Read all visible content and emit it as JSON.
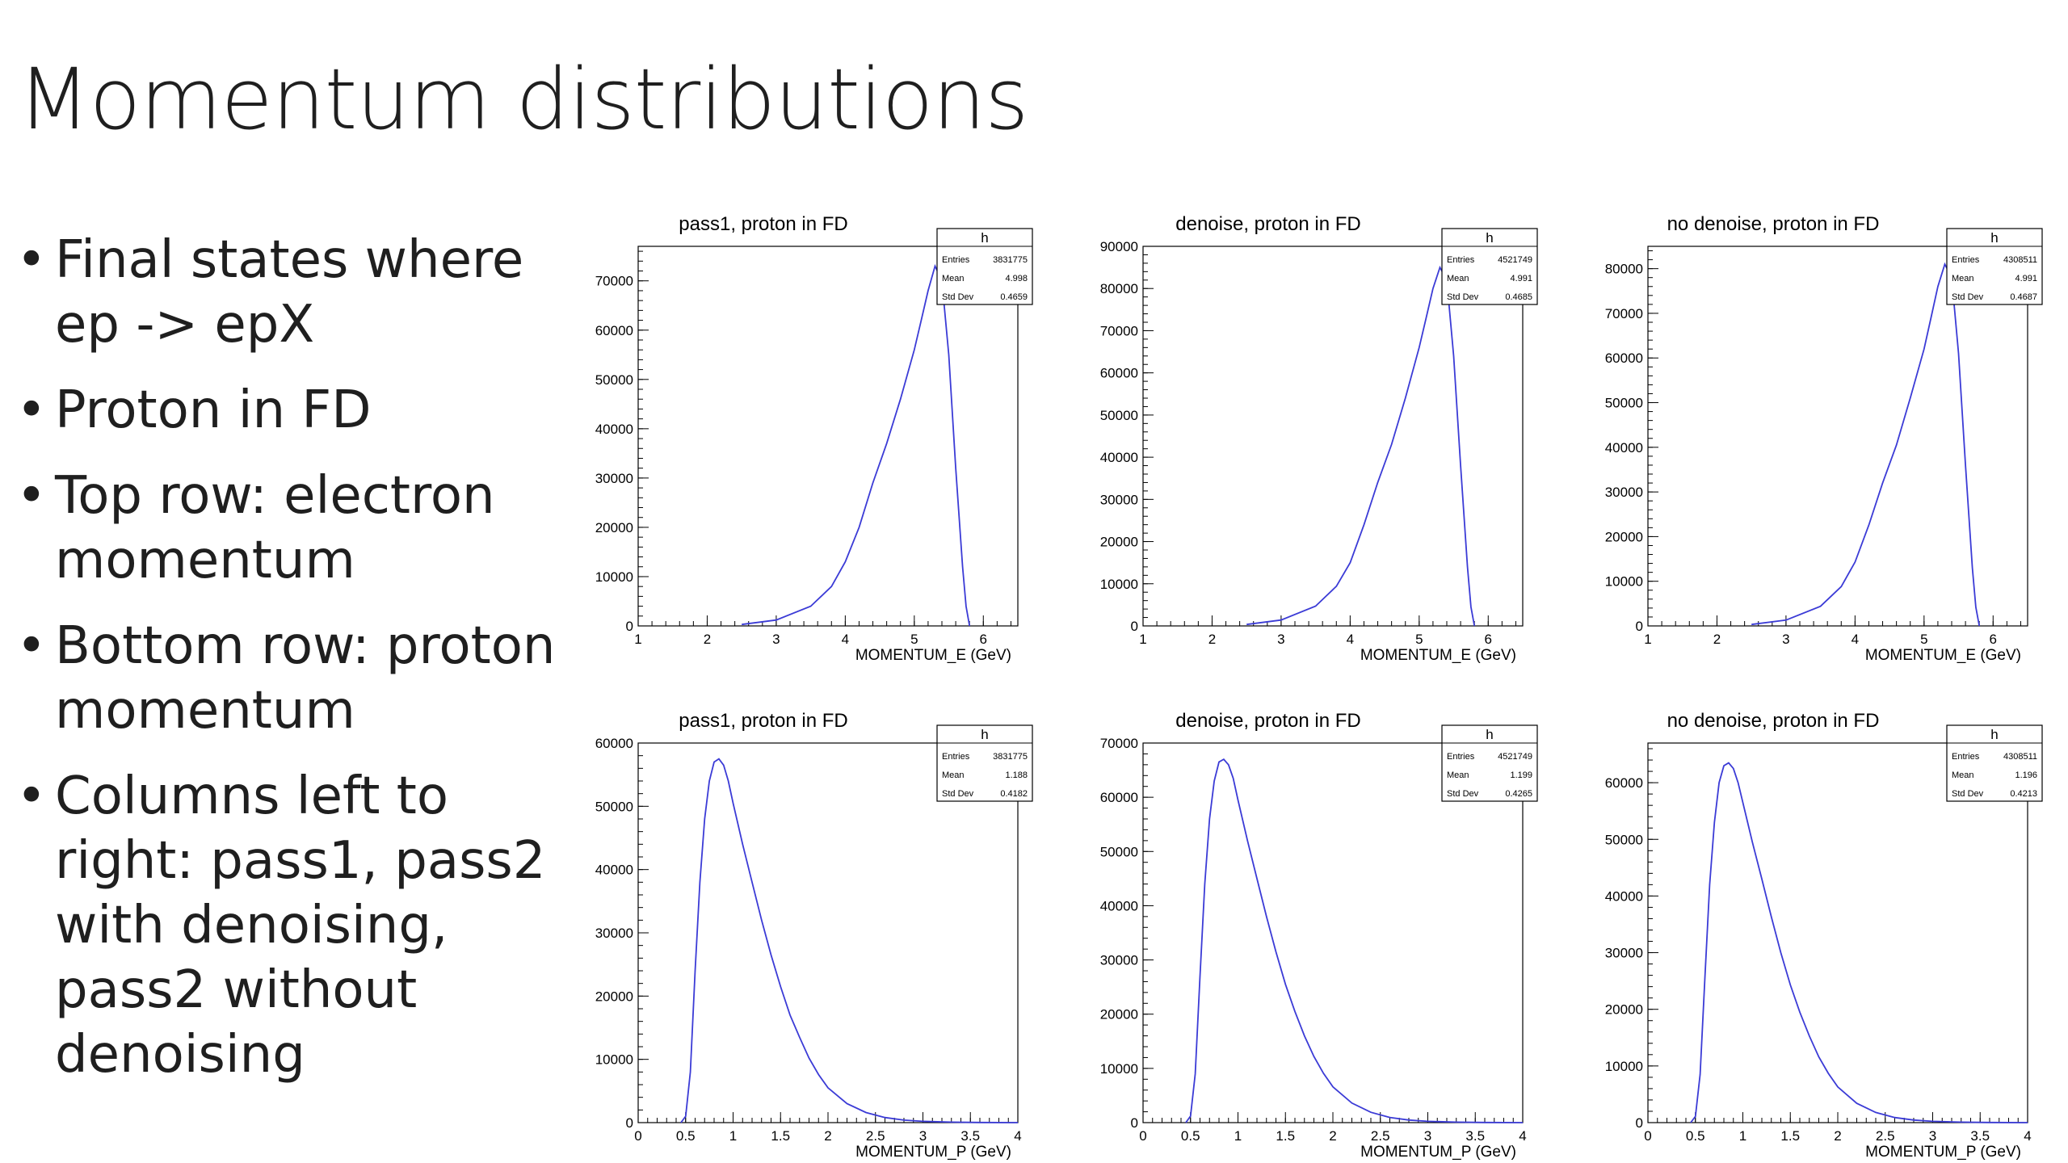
{
  "slide": {
    "title": "Momentum distributions",
    "bullets": [
      "Final states where ep -> epX",
      "Proton in FD",
      "Top row: electron momentum",
      "Bottom row: proton momentum",
      "Columns left to right: pass1, pass2 with denoising, pass2 without denoising"
    ]
  },
  "colors": {
    "histogram_line": "#3b3bd6",
    "axis": "#000000"
  },
  "chart_data": [
    {
      "type": "line",
      "title": "pass1, proton in FD",
      "xlabel": "MOMENTUM_E (GeV)",
      "ylabel": "",
      "xlim": [
        1,
        6.5
      ],
      "ylim": [
        0,
        77000
      ],
      "xticks": [
        1,
        2,
        3,
        4,
        5,
        6
      ],
      "yticks": [
        0,
        10000,
        20000,
        30000,
        40000,
        50000,
        60000,
        70000
      ],
      "stats": {
        "name": "h",
        "rows": [
          [
            "Entries",
            "3831775"
          ],
          [
            "Mean",
            "4.998"
          ],
          [
            "Std Dev",
            "0.4659"
          ]
        ]
      },
      "x": [
        2.5,
        3.0,
        3.5,
        3.8,
        4.0,
        4.2,
        4.4,
        4.6,
        4.8,
        5.0,
        5.1,
        5.2,
        5.3,
        5.4,
        5.5,
        5.6,
        5.7,
        5.75,
        5.8
      ],
      "y": [
        300,
        1200,
        4000,
        8000,
        13000,
        20000,
        29000,
        37000,
        46000,
        56000,
        62000,
        68000,
        73000,
        70000,
        55000,
        32000,
        12000,
        4000,
        0
      ]
    },
    {
      "type": "line",
      "title": "denoise, proton in FD",
      "xlabel": "MOMENTUM_E (GeV)",
      "ylabel": "",
      "xlim": [
        1,
        6.5
      ],
      "ylim": [
        0,
        90000
      ],
      "xticks": [
        1,
        2,
        3,
        4,
        5,
        6
      ],
      "yticks": [
        0,
        10000,
        20000,
        30000,
        40000,
        50000,
        60000,
        70000,
        80000,
        90000
      ],
      "stats": {
        "name": "h",
        "rows": [
          [
            "Entries",
            "4521749"
          ],
          [
            "Mean",
            "4.991"
          ],
          [
            "Std Dev",
            "0.4685"
          ]
        ]
      },
      "x": [
        2.5,
        3.0,
        3.5,
        3.8,
        4.0,
        4.2,
        4.4,
        4.6,
        4.8,
        5.0,
        5.1,
        5.2,
        5.3,
        5.4,
        5.5,
        5.6,
        5.7,
        5.75,
        5.8
      ],
      "y": [
        350,
        1400,
        4700,
        9400,
        15000,
        24000,
        34000,
        43000,
        54000,
        66000,
        73000,
        80000,
        85000,
        82000,
        64000,
        38000,
        14000,
        4500,
        0
      ]
    },
    {
      "type": "line",
      "title": "no denoise, proton in FD",
      "xlabel": "MOMENTUM_E (GeV)",
      "ylabel": "",
      "xlim": [
        1,
        6.5
      ],
      "ylim": [
        0,
        85000
      ],
      "xticks": [
        1,
        2,
        3,
        4,
        5,
        6
      ],
      "yticks": [
        0,
        10000,
        20000,
        30000,
        40000,
        50000,
        60000,
        70000,
        80000
      ],
      "stats": {
        "name": "h",
        "rows": [
          [
            "Entries",
            "4308511"
          ],
          [
            "Mean",
            "4.991"
          ],
          [
            "Std Dev",
            "0.4687"
          ]
        ]
      },
      "x": [
        2.5,
        3.0,
        3.5,
        3.8,
        4.0,
        4.2,
        4.4,
        4.6,
        4.8,
        5.0,
        5.1,
        5.2,
        5.3,
        5.4,
        5.5,
        5.6,
        5.7,
        5.75,
        5.8
      ],
      "y": [
        330,
        1300,
        4400,
        8800,
        14300,
        22600,
        32000,
        40500,
        51000,
        62000,
        69000,
        76000,
        81000,
        78000,
        61000,
        36000,
        13000,
        4200,
        0
      ]
    },
    {
      "type": "line",
      "title": "pass1, proton in FD",
      "xlabel": "MOMENTUM_P (GeV)",
      "ylabel": "",
      "xlim": [
        0,
        4
      ],
      "ylim": [
        0,
        60000
      ],
      "xticks": [
        0,
        0.5,
        1,
        1.5,
        2,
        2.5,
        3,
        3.5,
        4
      ],
      "yticks": [
        0,
        10000,
        20000,
        30000,
        40000,
        50000,
        60000
      ],
      "stats": {
        "name": "h",
        "rows": [
          [
            "Entries",
            "3831775"
          ],
          [
            "Mean",
            "1.188"
          ],
          [
            "Std Dev",
            "0.4182"
          ]
        ]
      },
      "x": [
        0.45,
        0.5,
        0.55,
        0.6,
        0.65,
        0.7,
        0.75,
        0.8,
        0.85,
        0.9,
        0.95,
        1.0,
        1.1,
        1.2,
        1.3,
        1.4,
        1.5,
        1.6,
        1.7,
        1.8,
        1.9,
        2.0,
        2.2,
        2.4,
        2.6,
        2.8,
        3.0,
        3.3,
        3.6,
        4.0
      ],
      "y": [
        0,
        1000,
        8000,
        24000,
        38000,
        48000,
        54000,
        57000,
        57500,
        56500,
        54000,
        50500,
        44000,
        38000,
        32000,
        26500,
        21500,
        17000,
        13500,
        10200,
        7600,
        5500,
        3000,
        1600,
        800,
        400,
        200,
        80,
        30,
        0
      ]
    },
    {
      "type": "line",
      "title": "denoise, proton in FD",
      "xlabel": "MOMENTUM_P (GeV)",
      "ylabel": "",
      "xlim": [
        0,
        4
      ],
      "ylim": [
        0,
        70000
      ],
      "xticks": [
        0,
        0.5,
        1,
        1.5,
        2,
        2.5,
        3,
        3.5,
        4
      ],
      "yticks": [
        0,
        10000,
        20000,
        30000,
        40000,
        50000,
        60000,
        70000
      ],
      "stats": {
        "name": "h",
        "rows": [
          [
            "Entries",
            "4521749"
          ],
          [
            "Mean",
            "1.199"
          ],
          [
            "Std Dev",
            "0.4265"
          ]
        ]
      },
      "x": [
        0.45,
        0.5,
        0.55,
        0.6,
        0.65,
        0.7,
        0.75,
        0.8,
        0.85,
        0.9,
        0.95,
        1.0,
        1.1,
        1.2,
        1.3,
        1.4,
        1.5,
        1.6,
        1.7,
        1.8,
        1.9,
        2.0,
        2.2,
        2.4,
        2.6,
        2.8,
        3.0,
        3.3,
        3.6,
        4.0
      ],
      "y": [
        0,
        1200,
        9000,
        27000,
        44000,
        56000,
        63000,
        66500,
        67000,
        66000,
        63500,
        59500,
        52000,
        45000,
        38000,
        31500,
        25500,
        20500,
        16000,
        12200,
        9100,
        6600,
        3600,
        1900,
        950,
        480,
        240,
        90,
        30,
        0
      ]
    },
    {
      "type": "line",
      "title": "no denoise, proton in FD",
      "xlabel": "MOMENTUM_P (GeV)",
      "ylabel": "",
      "xlim": [
        0,
        4
      ],
      "ylim": [
        0,
        67000
      ],
      "xticks": [
        0,
        0.5,
        1,
        1.5,
        2,
        2.5,
        3,
        3.5,
        4
      ],
      "yticks": [
        0,
        10000,
        20000,
        30000,
        40000,
        50000,
        60000
      ],
      "stats": {
        "name": "h",
        "rows": [
          [
            "Entries",
            "4308511"
          ],
          [
            "Mean",
            "1.196"
          ],
          [
            "Std Dev",
            "0.4213"
          ]
        ]
      },
      "x": [
        0.45,
        0.5,
        0.55,
        0.6,
        0.65,
        0.7,
        0.75,
        0.8,
        0.85,
        0.9,
        0.95,
        1.0,
        1.1,
        1.2,
        1.3,
        1.4,
        1.5,
        1.6,
        1.7,
        1.8,
        1.9,
        2.0,
        2.2,
        2.4,
        2.6,
        2.8,
        3.0,
        3.3,
        3.6,
        4.0
      ],
      "y": [
        0,
        1100,
        8500,
        25500,
        42000,
        53000,
        60000,
        63000,
        63500,
        62500,
        60000,
        56500,
        49500,
        43000,
        36300,
        30000,
        24300,
        19500,
        15300,
        11600,
        8700,
        6300,
        3400,
        1800,
        900,
        450,
        230,
        85,
        30,
        0
      ]
    }
  ]
}
